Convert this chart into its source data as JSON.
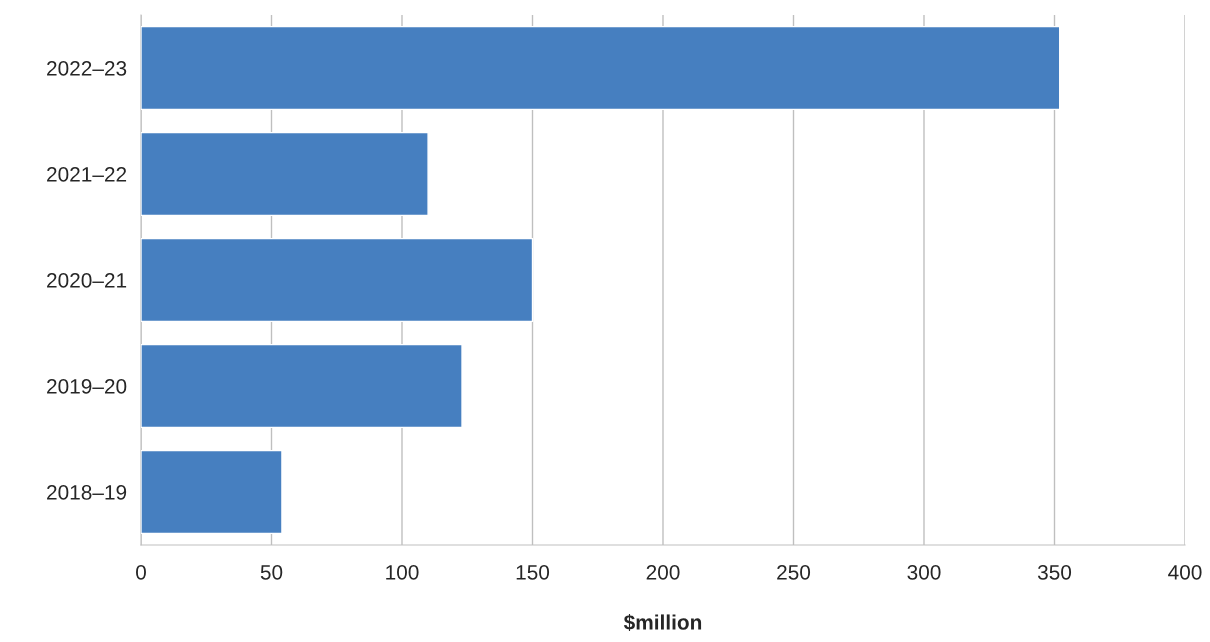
{
  "chart_data": {
    "type": "bar",
    "orientation": "horizontal",
    "xlabel": "$million",
    "categories": [
      "2022–23",
      "2021–22",
      "2020–21",
      "2019–20",
      "2018–19"
    ],
    "values": [
      352,
      110,
      150,
      123,
      54
    ],
    "color": "#467fc0",
    "xlim": [
      0,
      400
    ],
    "xticks": [
      0,
      50,
      100,
      150,
      200,
      250,
      300,
      350,
      400
    ],
    "grid": "x",
    "legend": false
  }
}
